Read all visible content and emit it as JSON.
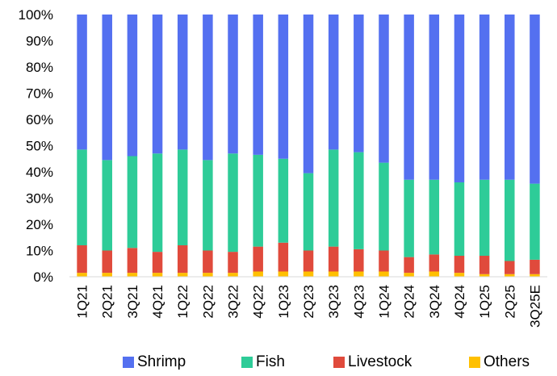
{
  "chart_data": {
    "type": "bar",
    "stacked": true,
    "percent": true,
    "categories": [
      "1Q21",
      "2Q21",
      "3Q21",
      "4Q21",
      "1Q22",
      "2Q22",
      "3Q22",
      "4Q22",
      "1Q23",
      "2Q23",
      "3Q23",
      "4Q23",
      "1Q24",
      "2Q24",
      "3Q24",
      "4Q24",
      "1Q25",
      "2Q25",
      "3Q25E"
    ],
    "series": [
      {
        "name": "Shrimp",
        "color": "#5470f0",
        "values": [
          51.5,
          55.5,
          54,
          53,
          51.5,
          55.5,
          53,
          53.5,
          55,
          60.5,
          51.5,
          52.5,
          56.5,
          63,
          63,
          64,
          63,
          63,
          64.5
        ]
      },
      {
        "name": "Fish",
        "color": "#2ecc98",
        "values": [
          36.5,
          34.5,
          35,
          37.5,
          36.5,
          34.5,
          37.5,
          35,
          32,
          29.5,
          37,
          37,
          33.5,
          29.5,
          28.5,
          28,
          29,
          31,
          29
        ]
      },
      {
        "name": "Livestock",
        "color": "#e04a3c",
        "values": [
          10.5,
          8.5,
          9.5,
          8,
          10.5,
          8.5,
          8,
          9.5,
          11,
          8,
          9.5,
          8.5,
          8,
          6,
          6.5,
          6.5,
          7,
          5,
          5.5
        ]
      },
      {
        "name": "Others",
        "color": "#ffc000",
        "values": [
          1.5,
          1.5,
          1.5,
          1.5,
          1.5,
          1.5,
          1.5,
          2,
          2,
          2,
          2,
          2,
          2,
          1.5,
          2,
          1.5,
          1,
          1,
          1
        ]
      }
    ],
    "y_ticks": [
      "0%",
      "10%",
      "20%",
      "30%",
      "40%",
      "50%",
      "60%",
      "70%",
      "80%",
      "90%",
      "100%"
    ],
    "ylim": [
      0,
      100
    ],
    "grid": false,
    "legend_position": "bottom",
    "title": "",
    "xlabel": "",
    "ylabel": ""
  }
}
